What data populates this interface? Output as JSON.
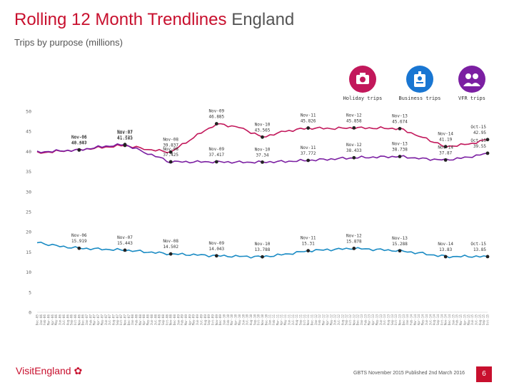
{
  "header": {
    "title_main": "Rolling 12 Month Trendlines",
    "title_region": "England",
    "subtitle": "Trips by purpose (millions)"
  },
  "legend": [
    {
      "label": "Holiday trips",
      "icon": "camera-icon",
      "color": "#c2185b"
    },
    {
      "label": "Business trips",
      "icon": "badge-icon",
      "color": "#1976d2"
    },
    {
      "label": "VFR trips",
      "icon": "people-icon",
      "color": "#7b1fa2"
    }
  ],
  "footer": {
    "logo_text": "VisitEngland",
    "note": "GBTS November 2015 Published 2nd March 2016",
    "page": "6"
  },
  "chart_data": {
    "type": "line",
    "ylim": [
      0,
      50
    ],
    "yticks": [
      0,
      5,
      10,
      15,
      20,
      25,
      30,
      35,
      40,
      45,
      50
    ],
    "x": [
      "Dec-05",
      "Jan-06",
      "Feb-06",
      "Mar-06",
      "Apr-06",
      "May-06",
      "Jun-06",
      "Jul-06",
      "Aug-06",
      "Sep-06",
      "Oct-06",
      "Nov-06",
      "Dec-06",
      "Jan-07",
      "Feb-07",
      "Mar-07",
      "Apr-07",
      "May-07",
      "Jun-07",
      "Jul-07",
      "Aug-07",
      "Sep-07",
      "Oct-07",
      "Nov-07",
      "Dec-07",
      "Jan-08",
      "Feb-08",
      "Mar-08",
      "Apr-08",
      "May-08",
      "Jun-08",
      "Jul-08",
      "Aug-08",
      "Sep-08",
      "Oct-08",
      "Nov-08",
      "Dec-08",
      "Jan-09",
      "Feb-09",
      "Mar-09",
      "Apr-09",
      "May-09",
      "Jun-09",
      "Jul-09",
      "Aug-09",
      "Sep-09",
      "Oct-09",
      "Nov-09",
      "Dec-09",
      "Jan-10",
      "Feb-10",
      "Mar-10",
      "Apr-10",
      "May-10",
      "Jun-10",
      "Jul-10",
      "Aug-10",
      "Sep-10",
      "Oct-10",
      "Nov-10",
      "Dec-10",
      "Jan-11",
      "Feb-11",
      "Mar-11",
      "Apr-11",
      "May-11",
      "Jun-11",
      "Jul-11",
      "Aug-11",
      "Sep-11",
      "Oct-11",
      "Nov-11",
      "Dec-11",
      "Jan-12",
      "Feb-12",
      "Mar-12",
      "Apr-12",
      "May-12",
      "Jun-12",
      "Jul-12",
      "Aug-12",
      "Sep-12",
      "Oct-12",
      "Nov-12",
      "Dec-12",
      "Jan-13",
      "Feb-13",
      "Mar-13",
      "Apr-13",
      "May-13",
      "Jun-13",
      "Jul-13",
      "Aug-13",
      "Sep-13",
      "Oct-13",
      "Nov-13",
      "Dec-13",
      "Jan-14",
      "Feb-14",
      "Mar-14",
      "Apr-14",
      "May-14",
      "Jun-14",
      "Jul-14",
      "Aug-14",
      "Sep-14",
      "Oct-14",
      "Nov-14",
      "Dec-14",
      "Jan-15",
      "Feb-15",
      "Mar-15",
      "Apr-15",
      "May-15",
      "Jun-15",
      "Jul-15",
      "Aug-15",
      "Sep-15",
      "Oct-15"
    ],
    "series": [
      {
        "name": "Holiday trips",
        "color": "#c2185b",
        "points": [
          [
            0,
            39.6
          ],
          [
            5,
            40.0
          ],
          [
            11,
            40.403
          ],
          [
            17,
            41.0
          ],
          [
            23,
            41.503
          ],
          [
            29,
            40.5
          ],
          [
            35,
            39.837
          ],
          [
            41,
            43.5
          ],
          [
            47,
            46.885
          ],
          [
            53,
            46.0
          ],
          [
            59,
            43.565
          ],
          [
            65,
            45.0
          ],
          [
            71,
            45.826
          ],
          [
            77,
            45.7
          ],
          [
            83,
            45.858
          ],
          [
            89,
            45.8
          ],
          [
            95,
            45.674
          ],
          [
            101,
            43.5
          ],
          [
            107,
            41.19
          ],
          [
            113,
            41.8
          ],
          [
            118,
            42.95
          ]
        ],
        "labels": [
          {
            "i": 11,
            "name": "Nov-06",
            "value": "40.403"
          },
          {
            "i": 23,
            "name": "Nov-07",
            "value": "41.503"
          },
          {
            "i": 35,
            "name": "Nov-08",
            "value": "39.837"
          },
          {
            "i": 47,
            "name": "Nov-09",
            "value": "46.885"
          },
          {
            "i": 59,
            "name": "Nov-10",
            "value": "43.565"
          },
          {
            "i": 71,
            "name": "Nov-11",
            "value": "45.826"
          },
          {
            "i": 83,
            "name": "Nov-12",
            "value": "45.858"
          },
          {
            "i": 95,
            "name": "Nov-13",
            "value": "45.674"
          },
          {
            "i": 107,
            "name": "Nov-14",
            "value": "41.19"
          },
          {
            "i": 118,
            "name": "Oct-15",
            "value": "42.95"
          }
        ]
      },
      {
        "name": "VFR trips",
        "color": "#7b1fa2",
        "points": [
          [
            0,
            39.8
          ],
          [
            5,
            40.1
          ],
          [
            11,
            40.347
          ],
          [
            17,
            41.2
          ],
          [
            23,
            41.725
          ],
          [
            29,
            39.5
          ],
          [
            35,
            37.425
          ],
          [
            41,
            37.4
          ],
          [
            47,
            37.417
          ],
          [
            53,
            37.3
          ],
          [
            59,
            37.34
          ],
          [
            65,
            37.5
          ],
          [
            71,
            37.772
          ],
          [
            77,
            38.1
          ],
          [
            83,
            38.433
          ],
          [
            89,
            38.6
          ],
          [
            95,
            38.738
          ],
          [
            101,
            38.2
          ],
          [
            107,
            37.87
          ],
          [
            113,
            38.6
          ],
          [
            118,
            39.55
          ]
        ],
        "labels": [
          {
            "i": 11,
            "name": "Nov-06",
            "value": "40.347"
          },
          {
            "i": 23,
            "name": "Nov-07",
            "value": "41.725"
          },
          {
            "i": 35,
            "name": "Nov-08",
            "value": "37.425"
          },
          {
            "i": 47,
            "name": "Nov-09",
            "value": "37.417"
          },
          {
            "i": 59,
            "name": "Nov-10",
            "value": "37.34"
          },
          {
            "i": 71,
            "name": "Nov-11",
            "value": "37.772"
          },
          {
            "i": 83,
            "name": "Nov-12",
            "value": "38.433"
          },
          {
            "i": 95,
            "name": "Nov-13",
            "value": "38.738"
          },
          {
            "i": 107,
            "name": "Nov-14",
            "value": "37.87"
          },
          {
            "i": 118,
            "name": "Oct-15",
            "value": "39.55"
          }
        ]
      },
      {
        "name": "Business trips",
        "color": "#1a8bc4",
        "points": [
          [
            0,
            17.4
          ],
          [
            5,
            16.5
          ],
          [
            11,
            15.919
          ],
          [
            17,
            15.7
          ],
          [
            23,
            15.443
          ],
          [
            29,
            15.0
          ],
          [
            35,
            14.502
          ],
          [
            41,
            14.3
          ],
          [
            47,
            14.043
          ],
          [
            53,
            13.9
          ],
          [
            59,
            13.788
          ],
          [
            65,
            14.4
          ],
          [
            71,
            15.31
          ],
          [
            77,
            15.6
          ],
          [
            83,
            15.878
          ],
          [
            89,
            15.6
          ],
          [
            95,
            15.288
          ],
          [
            101,
            14.6
          ],
          [
            107,
            13.83
          ],
          [
            113,
            13.9
          ],
          [
            118,
            13.85
          ]
        ],
        "labels": [
          {
            "i": 11,
            "name": "Nov-06",
            "value": "15.919"
          },
          {
            "i": 23,
            "name": "Nov-07",
            "value": "15.443"
          },
          {
            "i": 35,
            "name": "Nov-08",
            "value": "14.502"
          },
          {
            "i": 47,
            "name": "Nov-09",
            "value": "14.043"
          },
          {
            "i": 59,
            "name": "Nov-10",
            "value": "13.788"
          },
          {
            "i": 71,
            "name": "Nov-11",
            "value": "15.31"
          },
          {
            "i": 83,
            "name": "Nov-12",
            "value": "15.878"
          },
          {
            "i": 95,
            "name": "Nov-13",
            "value": "15.288"
          },
          {
            "i": 107,
            "name": "Nov-14",
            "value": "13.83"
          },
          {
            "i": 118,
            "name": "Oct-15",
            "value": "13.85"
          }
        ]
      }
    ]
  }
}
